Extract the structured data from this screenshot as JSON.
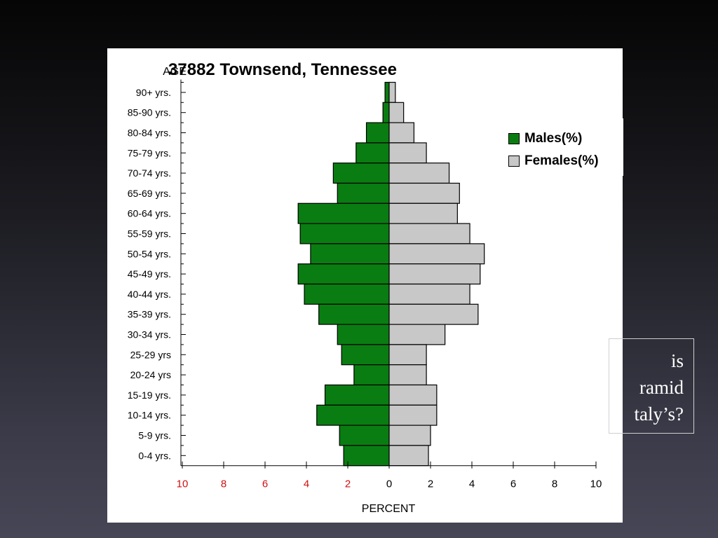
{
  "slide": {
    "text_lines": [
      "is",
      "ramid",
      "taly’s?"
    ]
  },
  "chart_data": {
    "type": "bar",
    "orientation": "horizontal",
    "title": "37882 Townsend, Tennessee",
    "ylabel": "AGE",
    "xlabel": "PERCENT",
    "categories": [
      "90+ yrs.",
      "85-90 yrs.",
      "80-84 yrs.",
      "75-79 yrs.",
      "70-74 yrs.",
      "65-69 yrs.",
      "60-64 yrs.",
      "55-59 yrs.",
      "50-54 yrs.",
      "45-49 yrs.",
      "40-44 yrs.",
      "35-39 yrs.",
      "30-34 yrs.",
      "25-29 yrs",
      "20-24 yrs",
      "15-19 yrs.",
      "10-14 yrs.",
      "5-9 yrs.",
      "0-4 yrs."
    ],
    "series": [
      {
        "name": "Males(%)",
        "values": [
          0.2,
          0.3,
          1.1,
          1.6,
          2.7,
          2.5,
          4.4,
          4.3,
          3.8,
          4.4,
          4.1,
          3.4,
          2.5,
          2.3,
          1.7,
          3.1,
          3.5,
          2.4,
          2.2
        ]
      },
      {
        "name": "Females(%)",
        "values": [
          0.3,
          0.7,
          1.2,
          1.8,
          2.9,
          3.4,
          3.3,
          3.9,
          4.6,
          4.4,
          3.9,
          4.3,
          2.7,
          1.8,
          1.8,
          2.3,
          2.3,
          2.0,
          1.9
        ]
      }
    ],
    "xticks": [
      "10",
      "8",
      "6",
      "4",
      "2",
      "0",
      "2",
      "4",
      "6",
      "8",
      "10"
    ],
    "xlim": [
      -10,
      10
    ],
    "colors": {
      "males": "#0a7d12",
      "females": "#c8c8c8",
      "left_tick_labels": "#d01010",
      "right_tick_labels": "#000000"
    },
    "legend_position": "right",
    "grid": false
  }
}
